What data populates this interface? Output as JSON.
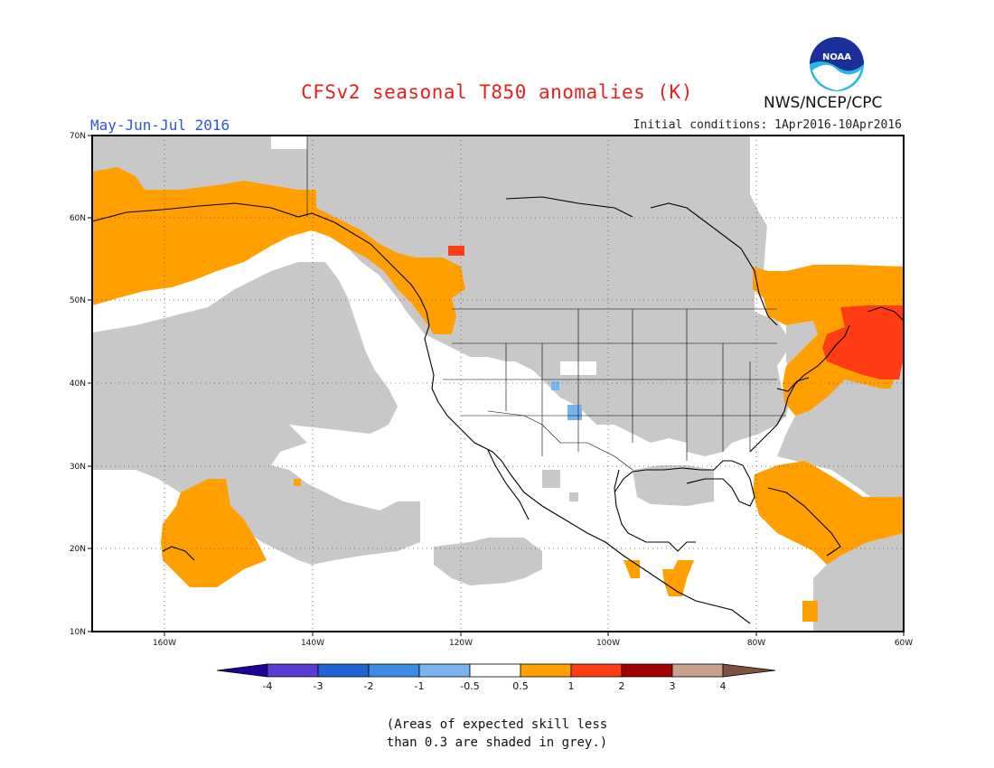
{
  "header": {
    "title": "CFSv2 seasonal T850 anomalies (K)",
    "period": "May-Jun-Jul 2016",
    "initial_conditions": "Initial conditions: 1Apr2016-10Apr2016",
    "org": "NWS/NCEP/CPC",
    "logo_text": "NOAA"
  },
  "map": {
    "projection": "lat-lon",
    "lat_range": [
      10,
      70
    ],
    "lon_range": [
      -172,
      -60
    ],
    "lat_labels": [
      "70N",
      "60N",
      "50N",
      "40N",
      "30N",
      "20N",
      "10N"
    ],
    "lon_labels": [
      "160W",
      "140W",
      "120W",
      "100W",
      "80W",
      "60W"
    ],
    "grid": "dotted",
    "colors": {
      "skill_mask": "#c8c8c8",
      "anom_0_5_to_1": "#ffa000",
      "anom_1_to_2": "#ff3c14",
      "anom_neg_0_5_to_1": "#78b4f0",
      "ocean_no_signal": "#ffffff"
    }
  },
  "colorbar": {
    "labels": [
      "-4",
      "-3",
      "-2",
      "-1",
      "-0.5",
      "0.5",
      "1",
      "2",
      "3",
      "4"
    ],
    "colors": [
      "#1e0096",
      "#5a3cd2",
      "#1e64d2",
      "#3c8ce6",
      "#78b4f0",
      "#ffffff",
      "#ffa000",
      "#ff3c14",
      "#a00000",
      "#c8a08c",
      "#7d5040"
    ]
  },
  "footnote": {
    "line1": "(Areas of expected skill less",
    "line2": "than 0.3 are shaded in grey.)"
  }
}
